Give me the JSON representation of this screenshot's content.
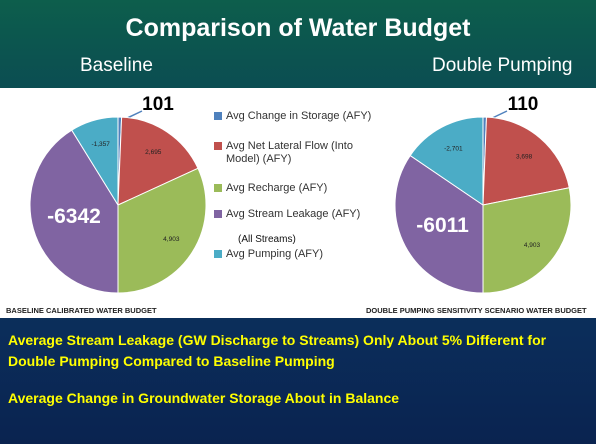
{
  "title": "Comparison of Water Budget",
  "chart_data": [
    {
      "type": "pie",
      "subtitle": "Baseline",
      "caption": "BASELINE CALIBRATED WATER BUDGET",
      "categories": [
        "Avg Change in Storage (AFY)",
        "Avg Net Lateral Flow (Into Model) (AFY)",
        "Avg Recharge (AFY)",
        "Avg Stream Leakage (AFY)",
        "Avg Pumping (AFY)"
      ],
      "legend_note": "(All Streams)",
      "values": [
        101,
        2695,
        4903,
        -6342,
        -1357
      ],
      "value_labels": [
        "101",
        "2,695",
        "4,903",
        "-6342",
        "-1,357"
      ],
      "colors": [
        "#4f81bd",
        "#c0504d",
        "#9bbb59",
        "#8064a2",
        "#4bacc6"
      ]
    },
    {
      "type": "pie",
      "subtitle": "Double Pumping",
      "caption": "DOUBLE PUMPING SENSITIVITY SCENARIO WATER BUDGET",
      "values": [
        110,
        3698,
        4903,
        -6011,
        -2701
      ],
      "value_labels": [
        "110",
        "3,698",
        "4,903",
        "-6011",
        "-2,701"
      ],
      "colors": [
        "#4f81bd",
        "#c0504d",
        "#9bbb59",
        "#8064a2",
        "#4bacc6"
      ]
    }
  ],
  "notes": [
    "Average Stream Leakage (GW Discharge to Streams) Only About 5% Different for Double Pumping Compared to Baseline Pumping",
    "Average Change in Groundwater Storage About in Balance"
  ]
}
